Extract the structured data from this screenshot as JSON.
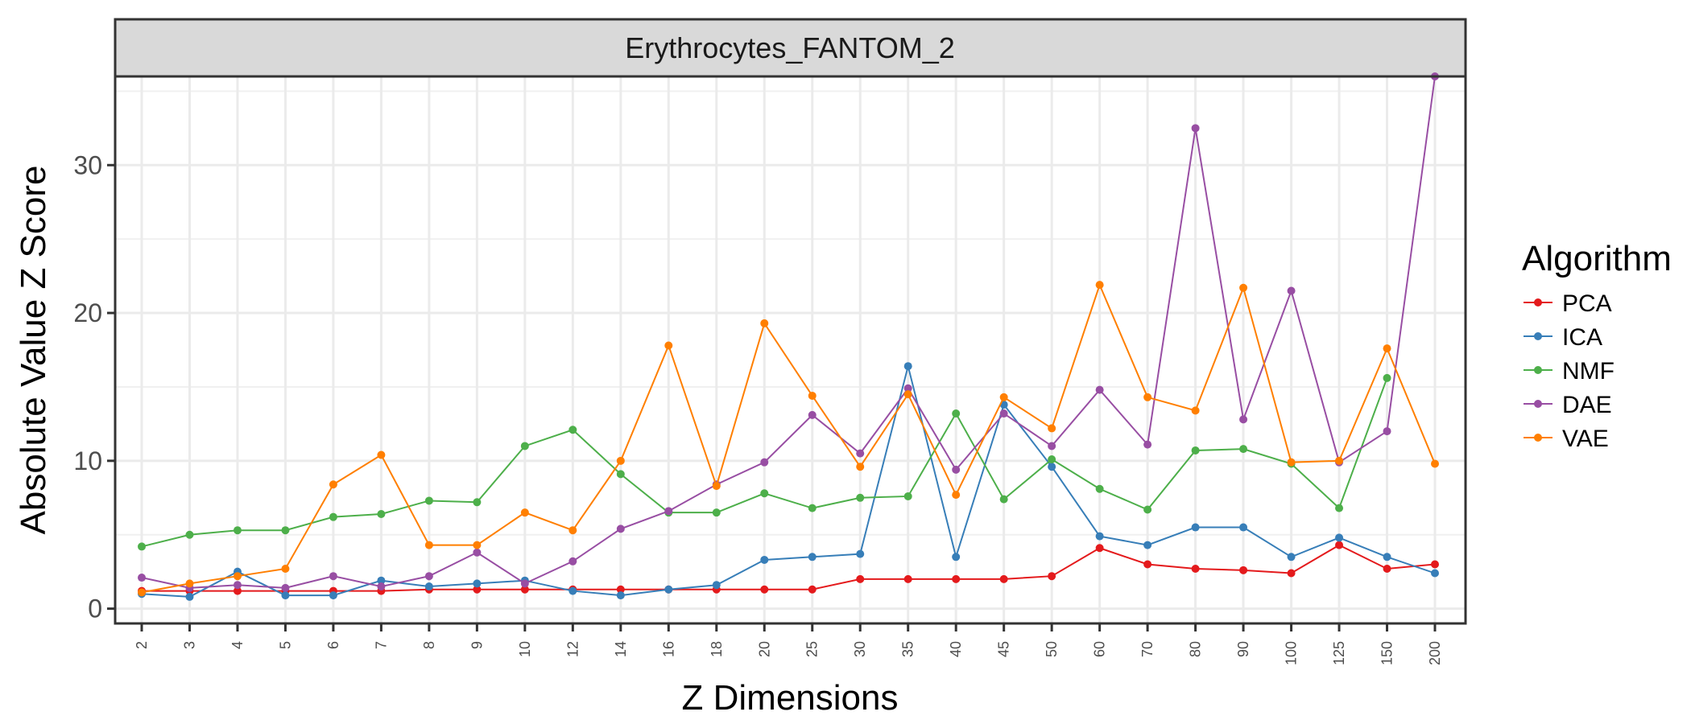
{
  "chart_data": {
    "type": "line",
    "title": "",
    "facet_label": "Erythrocytes_FANTOM_2",
    "xlabel": "Z Dimensions",
    "ylabel": "Absolute Value Z Score",
    "ylim": [
      -1,
      36
    ],
    "yticks": [
      0,
      10,
      20,
      30
    ],
    "grid": true,
    "legend": {
      "title": "Algorithm",
      "placement": "right"
    },
    "categories": [
      "2",
      "3",
      "4",
      "5",
      "6",
      "7",
      "8",
      "9",
      "10",
      "12",
      "14",
      "16",
      "18",
      "20",
      "25",
      "30",
      "35",
      "40",
      "45",
      "50",
      "60",
      "70",
      "80",
      "90",
      "100",
      "125",
      "150",
      "200"
    ],
    "series": [
      {
        "name": "PCA",
        "color": "#e41a1c",
        "values": [
          1.2,
          1.2,
          1.2,
          1.2,
          1.2,
          1.2,
          1.3,
          1.3,
          1.3,
          1.3,
          1.3,
          1.3,
          1.3,
          1.3,
          1.3,
          2.0,
          2.0,
          2.0,
          2.0,
          2.2,
          4.1,
          3.0,
          2.7,
          2.6,
          2.4,
          4.3,
          2.7,
          3.0
        ]
      },
      {
        "name": "ICA",
        "color": "#377eb8",
        "values": [
          1.0,
          0.8,
          2.5,
          0.9,
          0.9,
          1.9,
          1.5,
          1.7,
          1.9,
          1.2,
          0.9,
          1.3,
          1.6,
          3.3,
          3.5,
          3.7,
          16.4,
          3.5,
          13.8,
          9.6,
          4.9,
          4.3,
          5.5,
          5.5,
          3.5,
          4.8,
          3.5,
          2.4
        ]
      },
      {
        "name": "NMF",
        "color": "#4daf4a",
        "values": [
          4.2,
          5.0,
          5.3,
          5.3,
          6.2,
          6.4,
          7.3,
          7.2,
          11.0,
          12.1,
          9.1,
          6.5,
          6.5,
          7.8,
          6.8,
          7.5,
          7.6,
          13.2,
          7.4,
          10.1,
          8.1,
          6.7,
          10.7,
          10.8,
          9.8,
          6.8,
          15.6,
          null
        ]
      },
      {
        "name": "DAE",
        "color": "#984ea3",
        "values": [
          2.1,
          1.4,
          1.6,
          1.4,
          2.2,
          1.5,
          2.2,
          3.8,
          1.7,
          3.2,
          5.4,
          6.6,
          8.4,
          9.9,
          13.1,
          10.5,
          14.9,
          9.4,
          13.2,
          11.0,
          14.8,
          11.1,
          32.5,
          12.8,
          21.5,
          9.9,
          12.0,
          36.0
        ]
      },
      {
        "name": "VAE",
        "color": "#ff7f00",
        "values": [
          1.1,
          1.7,
          2.2,
          2.7,
          8.4,
          10.4,
          4.3,
          4.3,
          6.5,
          5.3,
          10.0,
          17.8,
          8.3,
          19.3,
          14.4,
          9.6,
          14.5,
          7.7,
          14.3,
          12.2,
          21.9,
          14.3,
          13.4,
          21.7,
          9.9,
          10.0,
          17.6,
          9.8
        ]
      }
    ]
  }
}
